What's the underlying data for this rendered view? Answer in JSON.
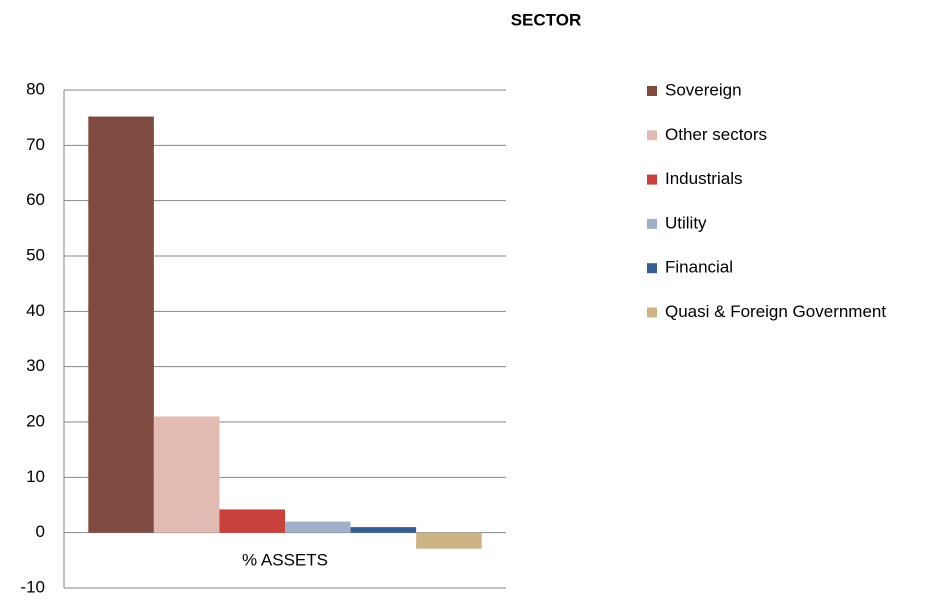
{
  "chart_data": {
    "type": "bar",
    "title": "SECTOR",
    "categories": [
      "% ASSETS"
    ],
    "series": [
      {
        "name": "Sovereign",
        "color": "#7f4a3f",
        "values": [
          75.2
        ]
      },
      {
        "name": "Other sectors",
        "color": "#e2bcb2",
        "values": [
          21.0
        ]
      },
      {
        "name": "Industrials",
        "color": "#c9413d",
        "values": [
          4.2
        ]
      },
      {
        "name": "Utility",
        "color": "#9fb0c8",
        "values": [
          2.0
        ]
      },
      {
        "name": "Financial",
        "color": "#345d91",
        "values": [
          1.0
        ]
      },
      {
        "name": "Quasi & Foreign Government",
        "color": "#cdb484",
        "values": [
          -2.9
        ]
      }
    ],
    "ylim": [
      -10,
      80
    ],
    "yticks": [
      -10,
      0,
      10,
      20,
      30,
      40,
      50,
      60,
      70,
      80
    ],
    "grid": true,
    "legend": "right"
  }
}
